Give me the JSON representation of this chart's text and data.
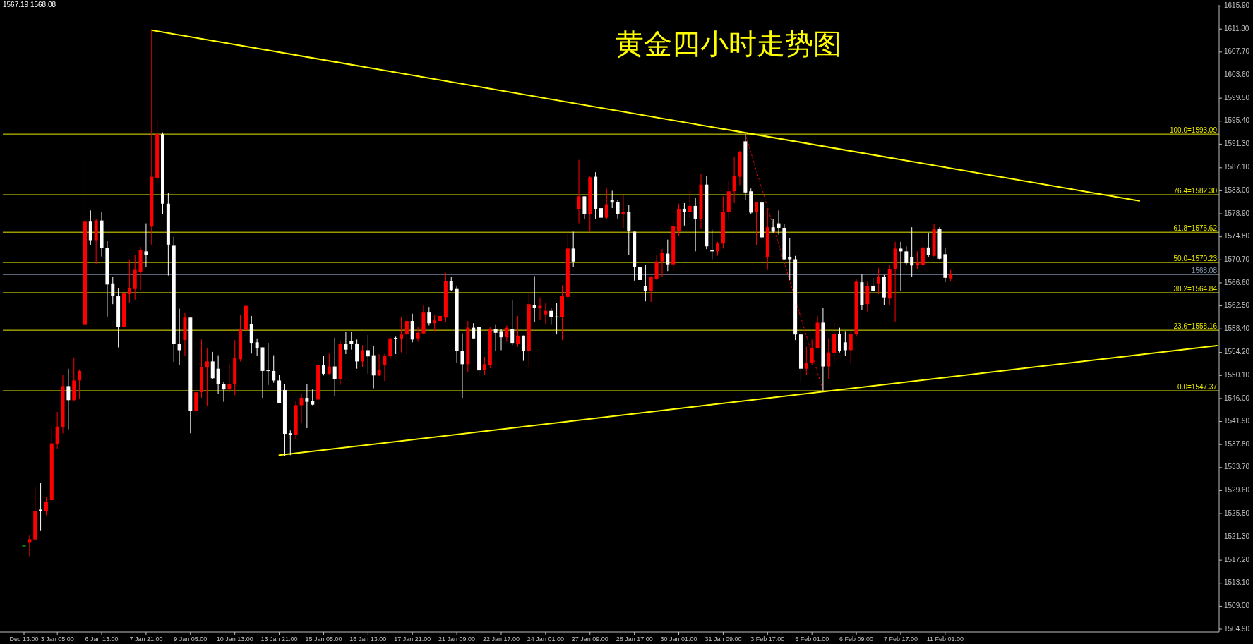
{
  "chart_data": {
    "type": "candlestick",
    "title": "黄金四小时走势图",
    "annotations": [
      "1567.19 1568.08"
    ],
    "categories": [
      "Dec 13:00",
      null,
      null,
      null,
      null,
      null,
      "3 Jan 05:00",
      null,
      null,
      null,
      null,
      null,
      null,
      null,
      "6 Jan 13:00",
      null,
      null,
      null,
      null,
      null,
      null,
      null,
      "7 Jan 21:00",
      null,
      null,
      null,
      null,
      null,
      null,
      null,
      "9 Jan 05:00",
      null,
      null,
      null,
      null,
      null,
      null,
      null,
      "10 Jan 13:00",
      null,
      null,
      null,
      null,
      null,
      null,
      null,
      "13 Jan 21:00",
      null,
      null,
      null,
      null,
      null,
      null,
      null,
      "15 Jan 05:00",
      null,
      null,
      null,
      null,
      null,
      null,
      null,
      "16 Jan 13:00",
      null,
      null,
      null,
      null,
      null,
      null,
      null,
      "17 Jan 21:00",
      null,
      null,
      null,
      null,
      null,
      null,
      null,
      "21 Jan 09:00",
      null,
      null,
      null,
      null,
      null,
      null,
      null,
      "22 Jan 17:00",
      null,
      null,
      null,
      null,
      null,
      null,
      null,
      "24 Jan 01:00",
      null,
      null,
      null,
      null,
      null,
      null,
      null,
      "27 Jan 09:00",
      null,
      null,
      null,
      null,
      null,
      null,
      null,
      "28 Jan 17:00",
      null,
      null,
      null,
      null,
      null,
      null,
      null,
      "30 Jan 01:00",
      null,
      null,
      null,
      null,
      null,
      null,
      null,
      "31 Jan 09:00",
      null,
      null,
      null,
      null,
      null,
      null,
      null,
      "3 Feb 17:00",
      null,
      null,
      null,
      null,
      null,
      null,
      null,
      "5 Feb 01:00",
      null,
      null,
      null,
      null,
      null,
      null,
      null,
      "6 Feb 09:00",
      null,
      null,
      null,
      null,
      null,
      null,
      null,
      "7 Feb 17:00",
      null,
      null,
      null,
      null,
      null,
      null,
      null,
      "11 Feb 01:00",
      null,
      null,
      null,
      null,
      null,
      null,
      null,
      null,
      null,
      null,
      null,
      null,
      null,
      null,
      null,
      null,
      null,
      null,
      null,
      null,
      null,
      null,
      null,
      null,
      null,
      null,
      null,
      null,
      null,
      null,
      null,
      null,
      null,
      null,
      null,
      null,
      null,
      null,
      null,
      null,
      null,
      null,
      null,
      null,
      null,
      null,
      null,
      null,
      null
    ],
    "ohlc": [
      [
        1519.8,
        1519.8,
        1519.8,
        1519.8
      ],
      [
        1520.3,
        1521.7,
        1517.9,
        1520.95
      ],
      [
        1520.9,
        1530.3,
        1520.8,
        1525.9
      ],
      [
        1526.2,
        1530.9,
        1522.4,
        1526.0
      ],
      [
        1525.9,
        1528.5,
        1525.2,
        1527.6
      ],
      [
        1527.9,
        1540.8,
        1527.6,
        1538.0
      ],
      [
        1537.9,
        1543.6,
        1537.0,
        1541.0
      ],
      [
        1540.9,
        1550.2,
        1539.8,
        1548.2
      ],
      [
        1548.2,
        1551.3,
        1540.5,
        1545.7
      ],
      [
        1545.7,
        1553.3,
        1545.6,
        1549.2
      ],
      [
        1549.2,
        1551.2,
        1545.9,
        1550.9
      ],
      [
        1559.1,
        1588.0,
        1558.2,
        1577.5
      ],
      [
        1577.5,
        1579.5,
        1573.3,
        1574.2
      ],
      [
        1574.2,
        1577.9,
        1570.0,
        1577.7
      ],
      [
        1577.7,
        1579.2,
        1571.3,
        1572.8
      ],
      [
        1572.8,
        1574.1,
        1560.6,
        1566.3
      ],
      [
        1566.5,
        1567.6,
        1562.8,
        1564.3
      ],
      [
        1564.2,
        1565.6,
        1555.1,
        1558.7
      ],
      [
        1558.7,
        1569.2,
        1557.9,
        1564.7
      ],
      [
        1564.6,
        1570.8,
        1563.0,
        1565.6
      ],
      [
        1565.5,
        1571.6,
        1563.6,
        1568.9
      ],
      [
        1568.6,
        1573.0,
        1565.3,
        1572.4
      ],
      [
        1572.2,
        1577.2,
        1569.4,
        1571.5
      ],
      [
        1576.6,
        1611.6,
        1573.4,
        1585.5
      ],
      [
        1585.3,
        1595.4,
        1584.9,
        1593.1
      ],
      [
        1593.1,
        1593.4,
        1578.9,
        1580.7
      ],
      [
        1580.7,
        1582.6,
        1567.9,
        1573.4
      ],
      [
        1573.2,
        1574.8,
        1552.5,
        1555.7
      ],
      [
        1555.7,
        1562.0,
        1552.0,
        1554.6
      ],
      [
        1556.4,
        1561.2,
        1553.6,
        1560.4
      ],
      [
        1560.4,
        1560.4,
        1539.8,
        1543.8
      ],
      [
        1543.8,
        1548.4,
        1543.6,
        1547.1
      ],
      [
        1547.1,
        1556.5,
        1546.1,
        1551.6
      ],
      [
        1551.5,
        1555.0,
        1544.6,
        1552.6
      ],
      [
        1552.6,
        1554.3,
        1549.5,
        1549.6
      ],
      [
        1551.3,
        1553.7,
        1546.8,
        1548.6
      ],
      [
        1548.6,
        1549.0,
        1545.4,
        1547.6
      ],
      [
        1547.6,
        1552.2,
        1547.1,
        1548.6
      ],
      [
        1548.6,
        1556.4,
        1546.6,
        1553.2
      ],
      [
        1553.0,
        1560.9,
        1552.6,
        1558.3
      ],
      [
        1558.2,
        1563.0,
        1557.6,
        1562.5
      ],
      [
        1559.3,
        1560.7,
        1554.0,
        1555.9
      ],
      [
        1556.0,
        1556.7,
        1553.6,
        1555.0
      ],
      [
        1555.1,
        1555.1,
        1546.1,
        1550.9
      ],
      [
        1551.0,
        1555.9,
        1548.4,
        1550.9
      ],
      [
        1550.9,
        1553.7,
        1548.8,
        1549.2
      ],
      [
        1549.2,
        1550.2,
        1545.2,
        1545.2
      ],
      [
        1547.5,
        1548.6,
        1535.8,
        1539.7
      ],
      [
        1539.8,
        1540.3,
        1535.9,
        1539.5
      ],
      [
        1539.5,
        1545.6,
        1538.8,
        1544.8
      ],
      [
        1544.8,
        1546.8,
        1541.6,
        1546.1
      ],
      [
        1546.1,
        1548.6,
        1540.7,
        1545.4
      ],
      [
        1545.5,
        1547.6,
        1544.8,
        1544.9
      ],
      [
        1545.8,
        1552.7,
        1543.6,
        1551.9
      ],
      [
        1552.0,
        1553.6,
        1550.1,
        1550.4
      ],
      [
        1550.4,
        1554.0,
        1550.2,
        1551.7
      ],
      [
        1551.7,
        1556.8,
        1546.5,
        1549.4
      ],
      [
        1549.4,
        1556.2,
        1548.4,
        1555.7
      ],
      [
        1555.7,
        1557.9,
        1553.9,
        1554.7
      ],
      [
        1556.2,
        1557.9,
        1554.7,
        1555.7
      ],
      [
        1555.8,
        1556.5,
        1551.3,
        1552.6
      ],
      [
        1552.6,
        1555.5,
        1551.6,
        1554.6
      ],
      [
        1554.6,
        1557.3,
        1550.4,
        1553.5
      ],
      [
        1553.7,
        1555.4,
        1547.8,
        1550.1
      ],
      [
        1550.1,
        1553.9,
        1550.0,
        1551.1
      ],
      [
        1551.9,
        1553.9,
        1549.1,
        1553.6
      ],
      [
        1553.5,
        1556.9,
        1553.0,
        1556.7
      ],
      [
        1556.8,
        1557.0,
        1553.9,
        1556.6
      ],
      [
        1556.6,
        1560.5,
        1554.2,
        1557.4
      ],
      [
        1557.4,
        1561.1,
        1553.9,
        1559.8
      ],
      [
        1559.8,
        1561.1,
        1556.0,
        1556.5
      ],
      [
        1556.7,
        1558.8,
        1556.1,
        1557.7
      ],
      [
        1557.6,
        1562.7,
        1557.4,
        1561.3
      ],
      [
        1561.3,
        1562.3,
        1559.0,
        1559.4
      ],
      [
        1559.4,
        1560.8,
        1558.0,
        1559.9
      ],
      [
        1559.8,
        1561.1,
        1559.3,
        1560.7
      ],
      [
        1560.4,
        1568.4,
        1559.6,
        1566.9
      ],
      [
        1566.9,
        1567.7,
        1565.1,
        1565.3
      ],
      [
        1565.5,
        1566.0,
        1552.3,
        1554.5
      ],
      [
        1554.5,
        1557.6,
        1546.1,
        1552.1
      ],
      [
        1552.1,
        1559.8,
        1550.7,
        1558.6
      ],
      [
        1558.6,
        1559.4,
        1556.7,
        1556.7
      ],
      [
        1558.7,
        1559.0,
        1549.9,
        1551.0
      ],
      [
        1551.0,
        1553.4,
        1550.2,
        1552.1
      ],
      [
        1551.9,
        1558.7,
        1551.4,
        1558.3
      ],
      [
        1558.3,
        1559.1,
        1554.4,
        1557.7
      ],
      [
        1558.0,
        1558.3,
        1554.6,
        1556.9
      ],
      [
        1556.9,
        1559.0,
        1556.1,
        1558.6
      ],
      [
        1558.3,
        1563.6,
        1555.5,
        1555.9
      ],
      [
        1555.7,
        1560.7,
        1555.2,
        1557.2
      ],
      [
        1557.2,
        1557.2,
        1552.7,
        1554.5
      ],
      [
        1554.5,
        1564.7,
        1551.6,
        1562.8
      ],
      [
        1562.7,
        1567.8,
        1559.6,
        1562.1
      ],
      [
        1562.1,
        1564.0,
        1560.0,
        1562.5
      ],
      [
        1561.0,
        1563.0,
        1559.3,
        1561.6
      ],
      [
        1561.6,
        1562.1,
        1559.1,
        1560.5
      ],
      [
        1560.6,
        1563.0,
        1557.4,
        1560.5
      ],
      [
        1560.5,
        1566.2,
        1556.4,
        1564.3
      ],
      [
        1564.1,
        1575.7,
        1563.8,
        1572.7
      ],
      [
        1572.7,
        1575.7,
        1569.4,
        1570.4
      ],
      [
        1579.7,
        1588.5,
        1577.2,
        1582.0
      ],
      [
        1582.0,
        1582.0,
        1577.9,
        1578.8
      ],
      [
        1578.8,
        1585.7,
        1575.7,
        1585.4
      ],
      [
        1585.5,
        1586.3,
        1577.9,
        1579.7
      ],
      [
        1579.9,
        1584.3,
        1576.9,
        1578.2
      ],
      [
        1578.2,
        1583.4,
        1578.0,
        1580.6
      ],
      [
        1581.4,
        1583.0,
        1579.9,
        1580.9
      ],
      [
        1581.0,
        1581.3,
        1578.0,
        1578.8
      ],
      [
        1578.8,
        1582.2,
        1576.4,
        1579.2
      ],
      [
        1579.2,
        1580.5,
        1571.6,
        1575.9
      ],
      [
        1575.7,
        1575.7,
        1567.0,
        1569.4
      ],
      [
        1569.4,
        1570.2,
        1565.5,
        1567.1
      ],
      [
        1566.0,
        1569.8,
        1563.3,
        1565.1
      ],
      [
        1565.1,
        1567.8,
        1563.2,
        1567.6
      ],
      [
        1567.3,
        1571.6,
        1567.1,
        1570.4
      ],
      [
        1570.4,
        1572.6,
        1567.7,
        1572.0
      ],
      [
        1571.8,
        1574.3,
        1568.7,
        1569.9
      ],
      [
        1569.9,
        1577.9,
        1568.7,
        1576.7
      ],
      [
        1575.8,
        1580.7,
        1574.9,
        1579.8
      ],
      [
        1579.8,
        1580.8,
        1576.8,
        1579.2
      ],
      [
        1579.2,
        1583.0,
        1578.2,
        1580.3
      ],
      [
        1580.3,
        1581.7,
        1572.2,
        1578.0
      ],
      [
        1578.0,
        1586.0,
        1576.3,
        1584.1
      ],
      [
        1584.1,
        1585.7,
        1572.6,
        1573.1
      ],
      [
        1572.5,
        1576.1,
        1570.8,
        1572.2
      ],
      [
        1572.2,
        1573.9,
        1571.4,
        1573.6
      ],
      [
        1573.6,
        1582.0,
        1572.7,
        1579.2
      ],
      [
        1579.2,
        1584.8,
        1577.8,
        1582.9
      ],
      [
        1582.9,
        1589.1,
        1580.8,
        1585.7
      ],
      [
        1585.5,
        1590.1,
        1584.0,
        1589.9
      ],
      [
        1591.8,
        1593.09,
        1581.4,
        1582.7
      ],
      [
        1582.9,
        1583.4,
        1578.8,
        1579.1
      ],
      [
        1579.2,
        1580.9,
        1573.3,
        1580.9
      ],
      [
        1580.9,
        1581.3,
        1574.2,
        1574.7
      ],
      [
        1571.1,
        1579.7,
        1568.9,
        1576.5
      ],
      [
        1576.5,
        1578.0,
        1575.4,
        1575.7
      ],
      [
        1577.2,
        1579.5,
        1575.2,
        1576.4
      ],
      [
        1576.4,
        1577.1,
        1570.6,
        1570.8
      ],
      [
        1571.2,
        1574.6,
        1567.1,
        1570.8
      ],
      [
        1570.8,
        1571.4,
        1556.4,
        1557.4
      ],
      [
        1557.4,
        1559.0,
        1548.8,
        1551.3
      ],
      [
        1551.3,
        1555.2,
        1550.2,
        1552.4
      ],
      [
        1552.4,
        1556.5,
        1551.9,
        1555.0
      ],
      [
        1554.9,
        1560.7,
        1554.9,
        1559.5
      ],
      [
        1559.5,
        1562.2,
        1547.37,
        1551.7
      ],
      [
        1551.7,
        1556.7,
        1549.4,
        1554.2
      ],
      [
        1554.1,
        1559.5,
        1552.4,
        1557.5
      ],
      [
        1557.5,
        1558.6,
        1554.2,
        1554.5
      ],
      [
        1556.0,
        1558.0,
        1553.6,
        1554.6
      ],
      [
        1554.6,
        1557.8,
        1552.2,
        1557.5
      ],
      [
        1557.4,
        1567.2,
        1557.0,
        1566.8
      ],
      [
        1566.7,
        1568.1,
        1561.7,
        1562.7
      ],
      [
        1562.8,
        1566.8,
        1561.5,
        1566.1
      ],
      [
        1566.1,
        1567.5,
        1565.0,
        1565.1
      ],
      [
        1566.5,
        1569.2,
        1564.6,
        1567.6
      ],
      [
        1567.6,
        1568.0,
        1562.6,
        1564.0
      ],
      [
        1563.8,
        1569.8,
        1562.7,
        1569.1
      ],
      [
        1569.0,
        1573.9,
        1559.7,
        1572.7
      ],
      [
        1572.7,
        1573.9,
        1565.1,
        1572.2
      ],
      [
        1572.2,
        1573.1,
        1569.7,
        1570.1
      ],
      [
        1571.2,
        1576.5,
        1567.7,
        1569.7
      ],
      [
        1569.7,
        1572.2,
        1569.0,
        1570.2
      ],
      [
        1569.8,
        1575.2,
        1569.3,
        1572.9
      ],
      [
        1572.9,
        1575.4,
        1571.2,
        1571.6
      ],
      [
        1571.4,
        1577.1,
        1571.3,
        1576.2
      ],
      [
        1576.2,
        1576.5,
        1570.8,
        1570.9
      ],
      [
        1571.7,
        1572.9,
        1566.7,
        1567.5
      ],
      [
        1567.4,
        1568.9,
        1566.8,
        1568.08
      ],
      null,
      null,
      null,
      null,
      null,
      null,
      null,
      null,
      null,
      null,
      null,
      null,
      null,
      null,
      null,
      null,
      null,
      null,
      null,
      null,
      null,
      null,
      null,
      null,
      null,
      null,
      null,
      null,
      null,
      null,
      null,
      null,
      null,
      null,
      null,
      null,
      null,
      null,
      null,
      null,
      null,
      null,
      null,
      null,
      null,
      null,
      null,
      null
    ],
    "colors": [
      "#00ff00",
      "#ff0000",
      "#ff0000",
      "#ffffff",
      "#ff0000",
      "#ff0000",
      "#ff0000",
      "#ff0000",
      "#ffffff",
      "#ff0000",
      "#ff0000",
      "#ff0000",
      "#ffffff",
      "#ff0000",
      "#ffffff",
      "#ffffff",
      "#ffffff",
      "#ffffff",
      "#ff0000",
      "#ff0000",
      "#ff0000",
      "#ff0000",
      "#ffffff",
      "#ff0000",
      "#ff0000",
      "#ffffff",
      "#ffffff",
      "#ffffff",
      "#ffffff",
      "#ff0000",
      "#ffffff",
      "#ff0000",
      "#ff0000",
      "#ff0000",
      "#ffffff",
      "#ffffff",
      "#ffffff",
      "#ff0000",
      "#ff0000",
      "#ff0000",
      "#ff0000",
      "#ffffff",
      "#ffffff",
      "#ffffff",
      "#ffffff",
      "#ffffff",
      "#ffffff",
      "#ffffff",
      "#ffffff",
      "#ff0000",
      "#ff0000",
      "#ffffff",
      "#ffffff",
      "#ff0000",
      "#ffffff",
      "#ff0000",
      "#ffffff",
      "#ff0000",
      "#ffffff",
      "#ffffff",
      "#ffffff",
      "#ff0000",
      "#ffffff",
      "#ffffff",
      "#ff0000",
      "#ff0000",
      "#ff0000",
      "#ffffff",
      "#ff0000",
      "#ff0000",
      "#ffffff",
      "#ff0000",
      "#ff0000",
      "#ffffff",
      "#ff0000",
      "#ff0000",
      "#ff0000",
      "#ffffff",
      "#ffffff",
      "#ffffff",
      "#ff0000",
      "#ffffff",
      "#ffffff",
      "#ff0000",
      "#ff0000",
      "#ffffff",
      "#ffffff",
      "#ff0000",
      "#ffffff",
      "#ff0000",
      "#ffffff",
      "#ff0000",
      "#ffffff",
      "#ff0000",
      "#ff0000",
      "#ffffff",
      "#ffffff",
      "#ff0000",
      "#ff0000",
      "#ffffff",
      "#ff0000",
      "#ffffff",
      "#ff0000",
      "#ffffff",
      "#ffffff",
      "#ff0000",
      "#ffffff",
      "#ffffff",
      "#ff0000",
      "#ffffff",
      "#ffffff",
      "#ffffff",
      "#ffffff",
      "#ff0000",
      "#ff0000",
      "#ff0000",
      "#ffffff",
      "#ff0000",
      "#ff0000",
      "#ffffff",
      "#ff0000",
      "#ffffff",
      "#ff0000",
      "#ffffff",
      "#ffffff",
      "#ff0000",
      "#ff0000",
      "#ff0000",
      "#ff0000",
      "#ff0000",
      "#ffffff",
      "#ffffff",
      "#ff0000",
      "#ffffff",
      "#ff0000",
      "#ffffff",
      "#ffffff",
      "#ffffff",
      "#ffffff",
      "#ffffff",
      "#ffffff",
      "#ff0000",
      "#ff0000",
      "#ff0000",
      "#ffffff",
      "#ff0000",
      "#ff0000",
      "#ffffff",
      "#ffffff",
      "#ff0000",
      "#ff0000",
      "#ffffff",
      "#ff0000",
      "#ffffff",
      "#ff0000",
      "#ffffff",
      "#ff0000",
      "#ff0000",
      "#ffffff",
      "#ffffff",
      "#ffffff",
      "#ff0000",
      "#ff0000",
      "#ffffff",
      "#ff0000",
      "#ffffff",
      "#ffffff",
      "#ff0000",
      null,
      null,
      null,
      null,
      null,
      null,
      null,
      null,
      null,
      null,
      null,
      null,
      null,
      null,
      null,
      null,
      null,
      null,
      null,
      null,
      null,
      null,
      null,
      null,
      null,
      null,
      null,
      null,
      null,
      null,
      null,
      null,
      null,
      null,
      null,
      null,
      null,
      null,
      null,
      null,
      null,
      null,
      null,
      null,
      null,
      null,
      null,
      null
    ],
    "series": [
      {
        "type": "line",
        "color": "#ffff00",
        "values": [
          null,
          null,
          null,
          null,
          null,
          null,
          null,
          null,
          null,
          null,
          null,
          null,
          null,
          null,
          null,
          null,
          null,
          null,
          null,
          null,
          null,
          null,
          null,
          1611.6,
          null,
          null,
          null,
          null,
          null,
          null,
          null,
          null,
          null,
          null,
          null,
          null,
          null,
          null,
          null,
          null,
          null,
          null,
          null,
          null,
          null,
          null,
          null,
          null,
          null,
          null,
          null,
          null,
          null,
          null,
          null,
          null,
          null,
          null,
          null,
          null,
          null,
          null,
          null,
          null,
          null,
          null,
          null,
          null,
          null,
          null,
          null,
          null,
          null,
          null,
          null,
          null,
          null,
          null,
          null,
          null,
          null,
          null,
          null,
          null,
          null,
          null,
          null,
          null,
          null,
          null,
          null,
          null,
          null,
          null,
          null,
          null,
          null,
          null,
          null,
          null,
          null,
          null,
          null,
          null,
          null,
          null,
          null,
          null,
          null,
          null,
          null,
          null,
          null,
          null,
          null,
          null,
          null,
          null,
          null,
          null,
          null,
          null,
          null,
          null,
          null,
          null,
          null,
          null,
          null,
          null,
          null,
          null,
          null,
          null,
          null,
          null,
          null,
          null,
          null,
          null,
          null,
          null,
          null,
          null,
          null,
          null,
          null,
          null,
          null,
          null,
          null,
          null,
          null,
          null,
          null,
          null,
          null,
          null,
          null,
          null,
          null,
          null,
          null,
          null,
          null,
          null,
          null,
          null,
          null,
          null,
          null,
          null,
          null,
          null,
          null,
          null,
          null,
          null,
          null,
          null,
          null,
          null,
          null,
          null,
          null,
          null,
          null,
          null,
          null,
          null,
          null,
          null,
          null,
          null,
          null,
          null,
          null,
          null,
          null,
          null,
          null,
          1581.2,
          null,
          null,
          null,
          null,
          null,
          null,
          null,
          null,
          null,
          null,
          null,
          null,
          null,
          null
        ]
      },
      {
        "type": "line",
        "color": "#ffff00",
        "values": [
          null,
          null,
          null,
          null,
          null,
          null,
          null,
          null,
          null,
          null,
          null,
          null,
          null,
          null,
          null,
          null,
          null,
          null,
          null,
          null,
          null,
          null,
          null,
          null,
          null,
          null,
          null,
          null,
          null,
          null,
          null,
          null,
          null,
          null,
          null,
          null,
          null,
          null,
          null,
          null,
          null,
          null,
          null,
          null,
          null,
          null,
          1535.9,
          null,
          null,
          null,
          null,
          null,
          null,
          null,
          null,
          null,
          null,
          null,
          null,
          null,
          null,
          null,
          null,
          null,
          null,
          null,
          null,
          null,
          null,
          null,
          null,
          null,
          null,
          null,
          null,
          null,
          null,
          null,
          null,
          null,
          null,
          null,
          null,
          null,
          null,
          null,
          null,
          null,
          null,
          null,
          null,
          null,
          null,
          null,
          null,
          null,
          null,
          null,
          null,
          null,
          null,
          null,
          null,
          null,
          null,
          null,
          null,
          null,
          null,
          null,
          null,
          null,
          null,
          null,
          null,
          null,
          null,
          null,
          null,
          null,
          null,
          null,
          null,
          null,
          null,
          null,
          null,
          null,
          null,
          null,
          null,
          null,
          null,
          null,
          null,
          null,
          null,
          null,
          null,
          null,
          null,
          null,
          null,
          null,
          null,
          null,
          null,
          null,
          null,
          null,
          null,
          null,
          null,
          null,
          null,
          null,
          null,
          null,
          null,
          null,
          null,
          null,
          null,
          null,
          null,
          null,
          null,
          null,
          null,
          null,
          null,
          null,
          null,
          null,
          null,
          null,
          null,
          null,
          null,
          null,
          null,
          null,
          null,
          null,
          null,
          null,
          null,
          null,
          null,
          null,
          null,
          null,
          null,
          null,
          null,
          null,
          null,
          null,
          null,
          null,
          null,
          null,
          null,
          null,
          null,
          null,
          null,
          null,
          null,
          null,
          null,
          null,
          null,
          null,
          null,
          1555.4
        ]
      },
      {
        "type": "line",
        "color": "#ff0000",
        "line_style": "dotted",
        "values": [
          null,
          null,
          null,
          null,
          null,
          null,
          null,
          null,
          null,
          null,
          null,
          null,
          null,
          null,
          null,
          null,
          null,
          null,
          null,
          null,
          null,
          null,
          null,
          null,
          null,
          null,
          null,
          null,
          null,
          null,
          null,
          null,
          null,
          null,
          null,
          null,
          null,
          null,
          null,
          null,
          null,
          null,
          null,
          null,
          null,
          null,
          null,
          null,
          null,
          null,
          null,
          null,
          null,
          null,
          null,
          null,
          null,
          null,
          null,
          null,
          null,
          null,
          null,
          null,
          null,
          null,
          null,
          null,
          null,
          null,
          null,
          null,
          null,
          null,
          null,
          null,
          null,
          null,
          null,
          null,
          null,
          null,
          null,
          null,
          null,
          null,
          null,
          null,
          null,
          null,
          null,
          null,
          null,
          null,
          null,
          null,
          null,
          null,
          null,
          null,
          null,
          null,
          null,
          null,
          null,
          null,
          null,
          null,
          null,
          null,
          null,
          null,
          null,
          null,
          null,
          null,
          null,
          null,
          null,
          null,
          null,
          null,
          null,
          null,
          null,
          null,
          null,
          null,
          null,
          null,
          1593.09,
          null,
          null,
          null,
          null,
          null,
          null,
          null,
          null,
          null,
          null,
          null,
          null,
          null,
          1547.37,
          null,
          null,
          null,
          null,
          null,
          null,
          null,
          null,
          null,
          null,
          null,
          null,
          null,
          null,
          null,
          null,
          null,
          null,
          null,
          null,
          null,
          null,
          null,
          null,
          null,
          null,
          null,
          null,
          null,
          null,
          null,
          null,
          null,
          null,
          null,
          null,
          null,
          null,
          null,
          null,
          null,
          null,
          null,
          null,
          null,
          null,
          null,
          null,
          null,
          null,
          null,
          null,
          null,
          null,
          null,
          null,
          null,
          null,
          null,
          null,
          null,
          null,
          null,
          null,
          null,
          null,
          null,
          null,
          null,
          null,
          null
        ]
      }
    ],
    "ref_lines": [
      {
        "axis": "y",
        "value": 1593.09,
        "label": "100.0=1593.09",
        "color": "#e6e600"
      },
      {
        "axis": "y",
        "value": 1582.3,
        "label": "76.4=1582.30",
        "color": "#e6e600"
      },
      {
        "axis": "y",
        "value": 1575.62,
        "label": "61.8=1575.62",
        "color": "#e6e600"
      },
      {
        "axis": "y",
        "value": 1570.23,
        "label": "50.0=1570.23",
        "color": "#e6e600"
      },
      {
        "axis": "y",
        "value": 1564.84,
        "label": "38.2=1564.84",
        "color": "#e6e600"
      },
      {
        "axis": "y",
        "value": 1558.16,
        "label": "23.6=1558.16",
        "color": "#e6e600"
      },
      {
        "axis": "y",
        "value": 1547.37,
        "label": "0.0=1547.37",
        "color": "#e6e600"
      },
      {
        "axis": "y",
        "value": 1568.08,
        "label": "1568.08",
        "color": "#8496b0"
      }
    ],
    "ylim": [
      1504.4,
      1616.1
    ],
    "yticks": [
      {
        "value": 1615.9,
        "label": "1615.90"
      },
      {
        "value": 1611.8,
        "label": "1611.80"
      },
      {
        "value": 1607.7,
        "label": "1607.70"
      },
      {
        "value": 1603.6,
        "label": "1603.60"
      },
      {
        "value": 1599.5,
        "label": "1599.50"
      },
      {
        "value": 1595.4,
        "label": "1595.40"
      },
      {
        "value": 1591.3,
        "label": "1591.30"
      },
      {
        "value": 1587.1,
        "label": "1587.10"
      },
      {
        "value": 1583.0,
        "label": "1583.00"
      },
      {
        "value": 1578.9,
        "label": "1578.90"
      },
      {
        "value": 1574.8,
        "label": "1574.80"
      },
      {
        "value": 1570.7,
        "label": "1570.70"
      },
      {
        "value": 1566.6,
        "label": "1566.60"
      },
      {
        "value": 1562.5,
        "label": "1562.50"
      },
      {
        "value": 1558.4,
        "label": "1558.40"
      },
      {
        "value": 1554.2,
        "label": "1554.20"
      },
      {
        "value": 1550.1,
        "label": "1550.10"
      },
      {
        "value": 1546.0,
        "label": "1546.00"
      },
      {
        "value": 1541.9,
        "label": "1541.90"
      },
      {
        "value": 1537.8,
        "label": "1537.80"
      },
      {
        "value": 1533.7,
        "label": "1533.70"
      },
      {
        "value": 1529.6,
        "label": "1529.60"
      },
      {
        "value": 1525.5,
        "label": "1525.50"
      },
      {
        "value": 1521.3,
        "label": "1521.30"
      },
      {
        "value": 1517.2,
        "label": "1517.20"
      },
      {
        "value": 1513.1,
        "label": "1513.10"
      },
      {
        "value": 1509.0,
        "label": "1509.00"
      },
      {
        "value": 1504.9,
        "label": "1504.90"
      }
    ]
  }
}
